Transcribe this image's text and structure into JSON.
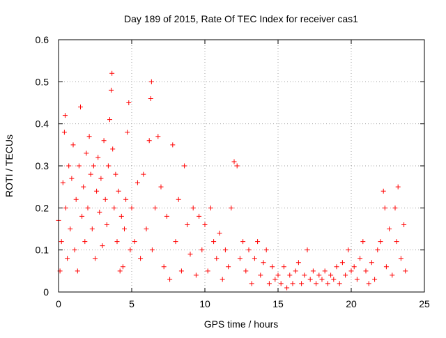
{
  "chart_data": {
    "type": "scatter",
    "title": "Day 189 of 2015, Rate Of TEC Index for receiver cas1",
    "xlabel": "GPS time / hours",
    "ylabel": "ROTI / TECUs",
    "xlim": [
      0,
      25
    ],
    "ylim": [
      0,
      0.6
    ],
    "xticks": [
      "0",
      "5",
      "10",
      "15",
      "20",
      "25"
    ],
    "xtick_values": [
      0,
      5,
      10,
      15,
      20,
      25
    ],
    "yticks": [
      "0",
      "0.1",
      "0.2",
      "0.3",
      "0.4",
      "0.5",
      "0.6"
    ],
    "ytick_values": [
      0,
      0.1,
      0.2,
      0.3,
      0.4,
      0.5,
      0.6
    ],
    "grid": true,
    "marker": "+",
    "color": "#ff0000",
    "series": [
      {
        "name": "ROTI",
        "points": [
          [
            0.0,
            0.17
          ],
          [
            0.1,
            0.05
          ],
          [
            0.2,
            0.12
          ],
          [
            0.3,
            0.26
          ],
          [
            0.4,
            0.38
          ],
          [
            0.45,
            0.42
          ],
          [
            0.5,
            0.2
          ],
          [
            0.6,
            0.08
          ],
          [
            0.7,
            0.3
          ],
          [
            0.8,
            0.15
          ],
          [
            0.9,
            0.27
          ],
          [
            1.0,
            0.35
          ],
          [
            1.1,
            0.1
          ],
          [
            1.2,
            0.22
          ],
          [
            1.3,
            0.05
          ],
          [
            1.4,
            0.3
          ],
          [
            1.5,
            0.44
          ],
          [
            1.6,
            0.18
          ],
          [
            1.7,
            0.25
          ],
          [
            1.8,
            0.12
          ],
          [
            1.9,
            0.33
          ],
          [
            2.0,
            0.2
          ],
          [
            2.1,
            0.37
          ],
          [
            2.2,
            0.28
          ],
          [
            2.3,
            0.15
          ],
          [
            2.4,
            0.3
          ],
          [
            2.5,
            0.08
          ],
          [
            2.6,
            0.24
          ],
          [
            2.7,
            0.32
          ],
          [
            2.8,
            0.19
          ],
          [
            2.9,
            0.27
          ],
          [
            3.0,
            0.11
          ],
          [
            3.1,
            0.36
          ],
          [
            3.2,
            0.22
          ],
          [
            3.3,
            0.16
          ],
          [
            3.4,
            0.3
          ],
          [
            3.5,
            0.41
          ],
          [
            3.6,
            0.48
          ],
          [
            3.65,
            0.52
          ],
          [
            3.7,
            0.34
          ],
          [
            3.8,
            0.2
          ],
          [
            3.9,
            0.28
          ],
          [
            4.0,
            0.12
          ],
          [
            4.1,
            0.24
          ],
          [
            4.2,
            0.05
          ],
          [
            4.3,
            0.18
          ],
          [
            4.4,
            0.06
          ],
          [
            4.5,
            0.15
          ],
          [
            4.6,
            0.22
          ],
          [
            4.7,
            0.38
          ],
          [
            4.8,
            0.45
          ],
          [
            4.9,
            0.1
          ],
          [
            5.0,
            0.2
          ],
          [
            5.2,
            0.12
          ],
          [
            5.4,
            0.26
          ],
          [
            5.6,
            0.08
          ],
          [
            5.8,
            0.28
          ],
          [
            6.0,
            0.15
          ],
          [
            6.2,
            0.36
          ],
          [
            6.3,
            0.46
          ],
          [
            6.35,
            0.5
          ],
          [
            6.4,
            0.1
          ],
          [
            6.6,
            0.2
          ],
          [
            6.8,
            0.37
          ],
          [
            7.0,
            0.25
          ],
          [
            7.2,
            0.06
          ],
          [
            7.4,
            0.18
          ],
          [
            7.6,
            0.03
          ],
          [
            7.8,
            0.35
          ],
          [
            8.0,
            0.12
          ],
          [
            8.2,
            0.22
          ],
          [
            8.4,
            0.05
          ],
          [
            8.6,
            0.3
          ],
          [
            8.8,
            0.16
          ],
          [
            9.0,
            0.09
          ],
          [
            9.2,
            0.2
          ],
          [
            9.4,
            0.04
          ],
          [
            9.6,
            0.18
          ],
          [
            9.8,
            0.1
          ],
          [
            10.0,
            0.16
          ],
          [
            10.2,
            0.05
          ],
          [
            10.4,
            0.2
          ],
          [
            10.6,
            0.12
          ],
          [
            10.8,
            0.08
          ],
          [
            11.0,
            0.14
          ],
          [
            11.2,
            0.03
          ],
          [
            11.4,
            0.1
          ],
          [
            11.6,
            0.06
          ],
          [
            11.8,
            0.2
          ],
          [
            12.0,
            0.31
          ],
          [
            12.2,
            0.3
          ],
          [
            12.4,
            0.08
          ],
          [
            12.6,
            0.12
          ],
          [
            12.8,
            0.05
          ],
          [
            13.0,
            0.1
          ],
          [
            13.2,
            0.02
          ],
          [
            13.4,
            0.08
          ],
          [
            13.6,
            0.12
          ],
          [
            13.8,
            0.04
          ],
          [
            14.0,
            0.07
          ],
          [
            14.2,
            0.1
          ],
          [
            14.4,
            0.02
          ],
          [
            14.6,
            0.06
          ],
          [
            14.8,
            0.03
          ],
          [
            15.0,
            0.04
          ],
          [
            15.2,
            0.02
          ],
          [
            15.4,
            0.06
          ],
          [
            15.6,
            0.01
          ],
          [
            15.8,
            0.04
          ],
          [
            16.0,
            0.02
          ],
          [
            16.2,
            0.05
          ],
          [
            16.4,
            0.07
          ],
          [
            16.6,
            0.02
          ],
          [
            16.8,
            0.04
          ],
          [
            17.0,
            0.1
          ],
          [
            17.2,
            0.03
          ],
          [
            17.4,
            0.05
          ],
          [
            17.6,
            0.02
          ],
          [
            17.8,
            0.04
          ],
          [
            18.0,
            0.03
          ],
          [
            18.2,
            0.05
          ],
          [
            18.4,
            0.02
          ],
          [
            18.6,
            0.04
          ],
          [
            18.8,
            0.03
          ],
          [
            19.0,
            0.06
          ],
          [
            19.2,
            0.02
          ],
          [
            19.4,
            0.07
          ],
          [
            19.6,
            0.04
          ],
          [
            19.8,
            0.1
          ],
          [
            20.0,
            0.05
          ],
          [
            20.2,
            0.06
          ],
          [
            20.4,
            0.03
          ],
          [
            20.6,
            0.08
          ],
          [
            20.8,
            0.12
          ],
          [
            21.0,
            0.05
          ],
          [
            21.2,
            0.02
          ],
          [
            21.4,
            0.07
          ],
          [
            21.6,
            0.03
          ],
          [
            21.8,
            0.1
          ],
          [
            22.0,
            0.12
          ],
          [
            22.2,
            0.24
          ],
          [
            22.3,
            0.2
          ],
          [
            22.4,
            0.06
          ],
          [
            22.6,
            0.15
          ],
          [
            22.8,
            0.04
          ],
          [
            23.0,
            0.2
          ],
          [
            23.1,
            0.12
          ],
          [
            23.2,
            0.25
          ],
          [
            23.4,
            0.08
          ],
          [
            23.6,
            0.16
          ],
          [
            23.7,
            0.05
          ]
        ]
      }
    ]
  }
}
